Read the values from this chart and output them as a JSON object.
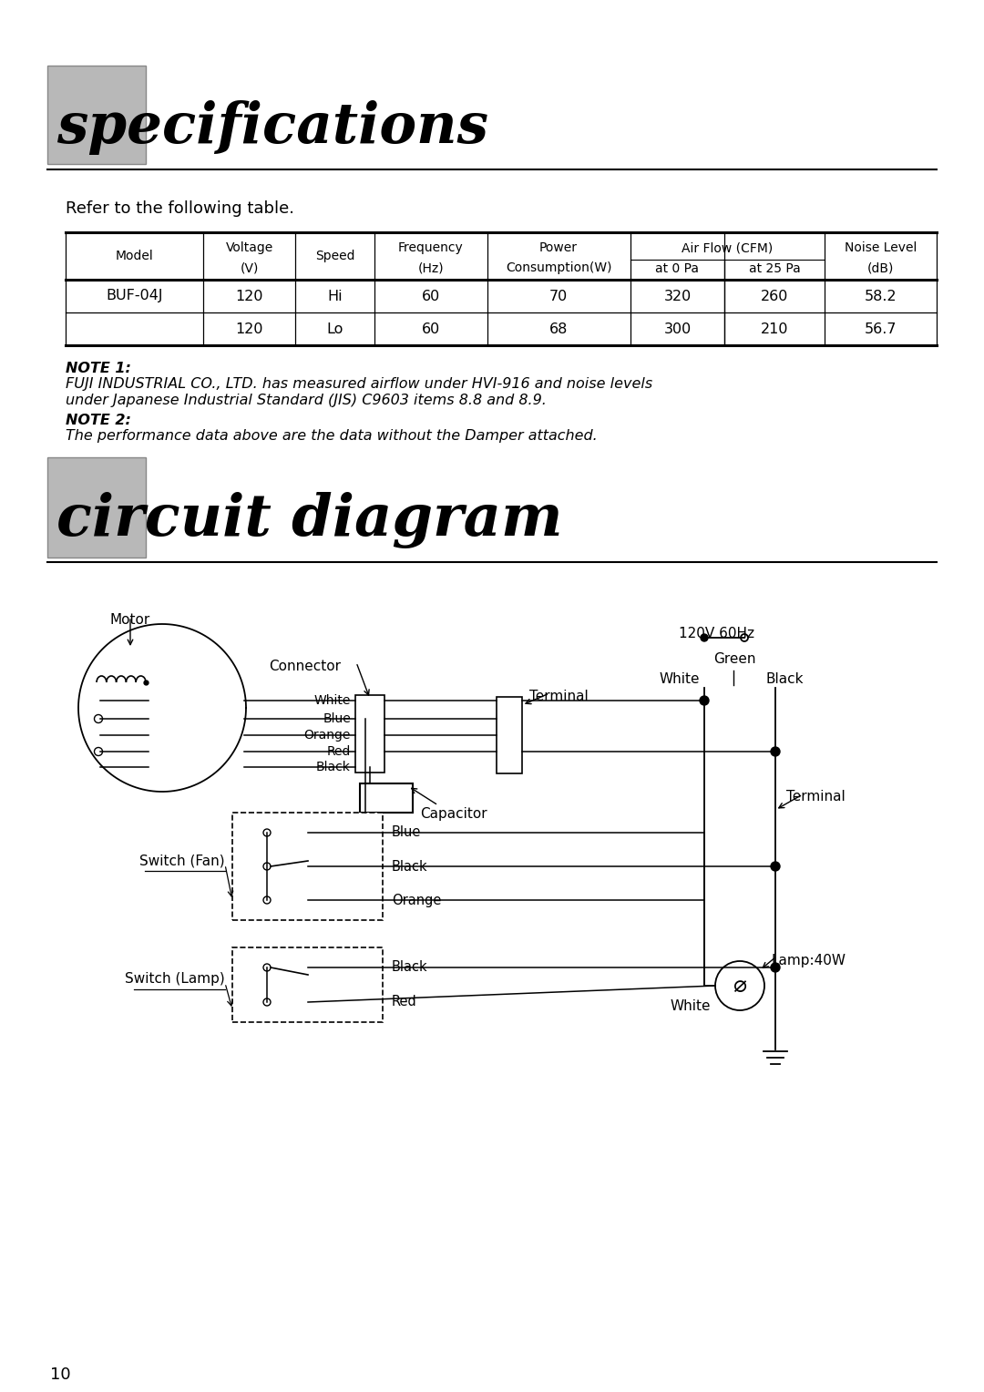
{
  "bg_color": "#ffffff",
  "page_number": "10",
  "spec_title": "specifications",
  "spec_subtitle": "Refer to the following table.",
  "table_data": [
    [
      "BUF-04J",
      "120",
      "Hi",
      "60",
      "70",
      "320",
      "260",
      "58.2"
    ],
    [
      "",
      "120",
      "Lo",
      "60",
      "68",
      "300",
      "210",
      "56.7"
    ]
  ],
  "note1_label": "NOTE 1:",
  "note1_text1": "FUJI INDUSTRIAL CO., LTD. has measured airflow under HVI-916 and noise levels",
  "note1_text2": "under Japanese Industrial Standard (JIS) C9603 items 8.8 and 8.9.",
  "note2_label": "NOTE 2:",
  "note2_text": "The performance data above are the data without the Damper attached.",
  "circuit_title": "circuit diagram",
  "lw": 1.2,
  "gray_color": "#b8b8b8",
  "gray_border": "#888888"
}
